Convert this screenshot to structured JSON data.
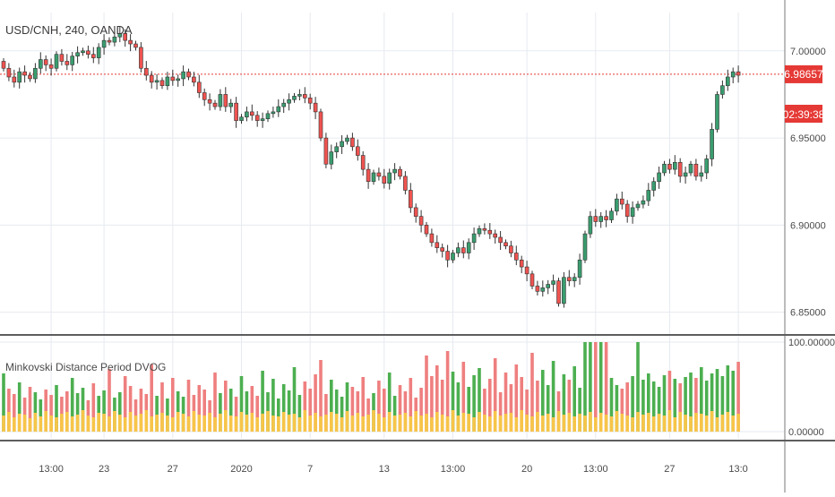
{
  "symbol_label": "USD/CNH, 240, OANDA",
  "indicator_label": "Minkovski Distance Period DVOG",
  "price_badge": "6.98657",
  "countdown_badge": "02:39:38",
  "colors": {
    "up": "#26a69a",
    "up_candle": "#3a9d6f",
    "down": "#ef5350",
    "bar_green": "#4caf50",
    "bar_red": "#ef7f7f",
    "bar_yellow": "#f7c548",
    "price_line": "#e53935",
    "grid": "#e6eaf0",
    "axis_text": "#4a4a4a",
    "separator": "#5d5d5d"
  },
  "chart_data": [
    {
      "type": "candlestick",
      "title": "USD/CNH, 240, OANDA",
      "y_ticks": [
        "7.00000",
        "6.95000",
        "6.90000",
        "6.85000"
      ],
      "y_tick_values": [
        7.0,
        6.95,
        6.9,
        6.85
      ],
      "ylim": [
        6.838,
        7.022
      ],
      "x_ticks": [
        "13:00",
        "23",
        "27",
        "2020",
        "7",
        "13",
        "13:00",
        "20",
        "13:00",
        "27",
        "13:0"
      ],
      "x_tick_index": [
        9,
        19,
        32,
        45,
        58,
        72,
        85,
        99,
        112,
        126,
        139
      ],
      "last_price": 6.98657,
      "close": [
        6.99,
        6.985,
        6.982,
        6.988,
        6.986,
        6.984,
        6.99,
        6.995,
        6.992,
        6.99,
        6.998,
        6.994,
        6.992,
        6.997,
        6.999,
        7.0,
        6.998,
        6.996,
        7.002,
        7.006,
        7.005,
        7.008,
        7.01,
        7.006,
        7.004,
        7.002,
        6.99,
        6.986,
        6.982,
        6.983,
        6.98,
        6.985,
        6.983,
        6.984,
        6.988,
        6.985,
        6.982,
        6.976,
        6.972,
        6.97,
        6.968,
        6.975,
        6.968,
        6.97,
        6.96,
        6.962,
        6.965,
        6.963,
        6.96,
        6.961,
        6.964,
        6.965,
        6.968,
        6.97,
        6.972,
        6.974,
        6.975,
        6.973,
        6.97,
        6.965,
        6.95,
        6.935,
        6.942,
        6.945,
        6.948,
        6.95,
        6.945,
        6.94,
        6.932,
        6.925,
        6.93,
        6.928,
        6.924,
        6.93,
        6.932,
        6.928,
        6.92,
        6.91,
        6.905,
        6.9,
        6.895,
        6.89,
        6.887,
        6.885,
        6.88,
        6.884,
        6.887,
        6.884,
        6.89,
        6.895,
        6.898,
        6.897,
        6.895,
        6.893,
        6.89,
        6.888,
        6.884,
        6.88,
        6.876,
        6.872,
        6.865,
        6.862,
        6.864,
        6.866,
        6.868,
        6.855,
        6.87,
        6.868,
        6.87,
        6.88,
        6.895,
        6.905,
        6.902,
        6.905,
        6.903,
        6.908,
        6.915,
        6.912,
        6.905,
        6.91,
        6.912,
        6.914,
        6.92,
        6.925,
        6.93,
        6.935,
        6.932,
        6.936,
        6.928,
        6.93,
        6.935,
        6.928,
        6.93,
        6.938,
        6.955,
        6.975,
        6.98,
        6.985,
        6.988,
        6.986
      ]
    },
    {
      "type": "bar",
      "title": "Minkovski Distance Period DVOG",
      "y_ticks": [
        "100.00000",
        "0.00000"
      ],
      "y_tick_values": [
        100,
        0
      ],
      "ylim": [
        -8,
        102
      ],
      "values": [
        65,
        48,
        42,
        55,
        38,
        50,
        44,
        36,
        47,
        41,
        52,
        39,
        45,
        60,
        43,
        49,
        35,
        54,
        40,
        46,
        70,
        38,
        44,
        62,
        51,
        36,
        48,
        42,
        75,
        40,
        55,
        37,
        60,
        45,
        39,
        58,
        41,
        52,
        47,
        35,
        66,
        43,
        57,
        48,
        39,
        62,
        45,
        51,
        40,
        68,
        44,
        59,
        37,
        53,
        46,
        72,
        41,
        56,
        48,
        64,
        80,
        42,
        58,
        47,
        39,
        55,
        50,
        45,
        61,
        37,
        43,
        57,
        48,
        66,
        40,
        52,
        45,
        60,
        38,
        49,
        85,
        62,
        74,
        58,
        90,
        67,
        55,
        78,
        50,
        63,
        71,
        48,
        59,
        82,
        44,
        66,
        53,
        75,
        61,
        47,
        88,
        57,
        69,
        52,
        79,
        45,
        64,
        58,
        73,
        49,
        100,
        100,
        100,
        100,
        100,
        60,
        52,
        48,
        55,
        62,
        100,
        58,
        65,
        56,
        50,
        63,
        68,
        59,
        54,
        61,
        66,
        60,
        72,
        57,
        65,
        70,
        62,
        74,
        68,
        78
      ],
      "baseline_values": [
        18,
        22,
        16,
        20,
        19,
        15,
        21,
        17,
        23,
        18,
        16,
        20,
        22,
        17,
        19,
        24,
        18,
        16,
        21,
        20,
        17,
        23,
        19,
        16,
        22,
        18,
        20,
        24,
        17,
        19,
        21,
        18,
        16,
        22,
        20,
        17,
        23,
        19,
        18,
        21,
        16,
        20,
        24,
        18,
        17,
        22,
        19,
        21,
        16,
        20,
        23,
        18,
        17,
        22,
        19,
        20,
        16,
        24,
        18,
        21,
        17,
        19,
        22,
        20,
        16,
        23,
        18,
        21,
        17,
        19,
        24,
        20,
        16,
        22,
        18,
        19,
        21,
        17,
        23,
        18,
        20,
        16,
        22,
        19,
        17,
        24,
        18,
        21,
        20,
        16,
        22,
        19,
        17,
        23,
        18,
        20,
        21,
        16,
        24,
        19,
        17,
        22,
        18,
        20,
        16,
        23,
        19,
        21,
        17,
        20,
        18,
        22,
        16,
        21,
        19,
        17,
        23,
        20,
        18,
        16,
        22,
        19,
        21,
        17,
        20,
        18,
        24,
        16,
        22,
        19,
        17,
        21,
        20,
        18,
        23,
        16,
        19,
        22,
        18,
        20
      ]
    }
  ]
}
